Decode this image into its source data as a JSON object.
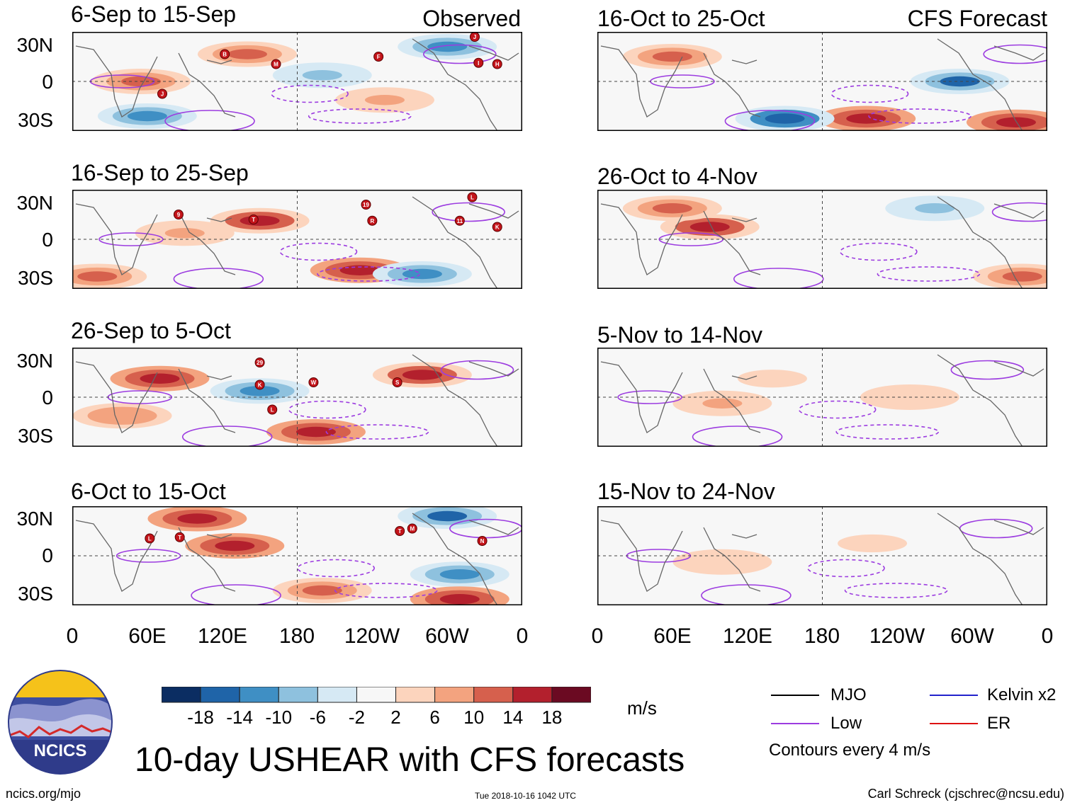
{
  "panels_left": [
    {
      "title": "6-Sep to 15-Sep",
      "corner": "Observed",
      "storms": [
        "B",
        "M",
        "F",
        "I",
        "H",
        "J",
        "J"
      ]
    },
    {
      "title": "16-Sep to 25-Sep",
      "corner": "",
      "storms": [
        "9",
        "T",
        "19",
        "R",
        "L",
        "11",
        "K"
      ]
    },
    {
      "title": "26-Sep to 5-Oct",
      "corner": "",
      "storms": [
        "29",
        "K",
        "W",
        "L",
        "S"
      ]
    },
    {
      "title": "6-Oct to 15-Oct",
      "corner": "",
      "storms": [
        "L",
        "T",
        "T",
        "M",
        "N"
      ]
    }
  ],
  "panels_right": [
    {
      "title": "16-Oct to 25-Oct",
      "corner": "CFS Forecast"
    },
    {
      "title": "26-Oct to 4-Nov",
      "corner": ""
    },
    {
      "title": "5-Nov to 14-Nov",
      "corner": ""
    },
    {
      "title": "15-Nov to 24-Nov",
      "corner": ""
    }
  ],
  "y_ticks": [
    "30N",
    "0",
    "30S"
  ],
  "x_ticks": [
    "0",
    "60E",
    "120E",
    "180",
    "120W",
    "60W",
    "0"
  ],
  "chart_data": {
    "type": "heatmap",
    "title": "10-day USHEAR with CFS forecasts",
    "variable": "USHEAR",
    "units": "m/s",
    "x_range_deg": [
      0,
      360
    ],
    "y_range_deg": [
      -40,
      40
    ],
    "colorbar_levels": [
      "-18",
      "-14",
      "-10",
      "-6",
      "-2",
      "2",
      "6",
      "10",
      "14",
      "18"
    ],
    "colorbar_colors": [
      "#0b2d62",
      "#1f64a8",
      "#3f8fc4",
      "#8ec1de",
      "#d6e9f4",
      "#f7f7f7",
      "#fcd4bd",
      "#f3a37f",
      "#d6604d",
      "#b3202d",
      "#6b0a22"
    ],
    "contour_interval": "Contours every 4 m/s",
    "legend": [
      {
        "label": "MJO",
        "color": "#000000"
      },
      {
        "label": "Kelvin x2",
        "color": "#2222cc"
      },
      {
        "label": "Low",
        "color": "#9c3ce0"
      },
      {
        "label": "ER",
        "color": "#dd1111"
      }
    ],
    "blobs": [
      {
        "panel": 0,
        "lon": 55,
        "lat": 0,
        "value": 14
      },
      {
        "panel": 0,
        "lon": 140,
        "lat": 22,
        "value": 14
      },
      {
        "panel": 0,
        "lon": 200,
        "lat": 5,
        "value": -8
      },
      {
        "panel": 0,
        "lon": 250,
        "lat": -15,
        "value": 8
      },
      {
        "panel": 0,
        "lon": 60,
        "lat": -28,
        "value": -12
      },
      {
        "panel": 0,
        "lon": 300,
        "lat": 28,
        "value": -10
      },
      {
        "panel": 1,
        "lon": 150,
        "lat": 15,
        "value": 16
      },
      {
        "panel": 1,
        "lon": 230,
        "lat": -25,
        "value": 18
      },
      {
        "panel": 1,
        "lon": 280,
        "lat": -28,
        "value": -12
      },
      {
        "panel": 1,
        "lon": 20,
        "lat": -30,
        "value": 14
      },
      {
        "panel": 1,
        "lon": 90,
        "lat": 5,
        "value": 8
      },
      {
        "panel": 2,
        "lon": 70,
        "lat": 15,
        "value": 18
      },
      {
        "panel": 2,
        "lon": 195,
        "lat": -28,
        "value": 18
      },
      {
        "panel": 2,
        "lon": 280,
        "lat": 18,
        "value": 16
      },
      {
        "panel": 2,
        "lon": 150,
        "lat": 5,
        "value": -12
      },
      {
        "panel": 2,
        "lon": 40,
        "lat": -15,
        "value": 10
      },
      {
        "panel": 3,
        "lon": 100,
        "lat": 30,
        "value": 18
      },
      {
        "panel": 3,
        "lon": 130,
        "lat": 8,
        "value": 18
      },
      {
        "panel": 3,
        "lon": 300,
        "lat": 32,
        "value": -14
      },
      {
        "panel": 3,
        "lon": 310,
        "lat": -15,
        "value": -12
      },
      {
        "panel": 3,
        "lon": 310,
        "lat": -35,
        "value": 18
      },
      {
        "panel": 3,
        "lon": 200,
        "lat": -28,
        "value": 14
      },
      {
        "panel": 4,
        "lon": 60,
        "lat": 20,
        "value": 14
      },
      {
        "panel": 4,
        "lon": 215,
        "lat": -30,
        "value": 18
      },
      {
        "panel": 4,
        "lon": 335,
        "lat": -33,
        "value": 18
      },
      {
        "panel": 4,
        "lon": 290,
        "lat": 0,
        "value": -14
      },
      {
        "panel": 4,
        "lon": 150,
        "lat": -30,
        "value": -16
      },
      {
        "panel": 5,
        "lon": 90,
        "lat": 10,
        "value": 16
      },
      {
        "panel": 5,
        "lon": 60,
        "lat": 25,
        "value": 12
      },
      {
        "panel": 5,
        "lon": 340,
        "lat": -30,
        "value": 12
      },
      {
        "panel": 5,
        "lon": 270,
        "lat": 25,
        "value": -8
      },
      {
        "panel": 6,
        "lon": 100,
        "lat": -5,
        "value": 8
      },
      {
        "panel": 6,
        "lon": 250,
        "lat": 0,
        "value": 6
      },
      {
        "panel": 6,
        "lon": 140,
        "lat": 15,
        "value": 4
      },
      {
        "panel": 7,
        "lon": 100,
        "lat": -5,
        "value": 6
      },
      {
        "panel": 7,
        "lon": 220,
        "lat": 10,
        "value": 4
      }
    ]
  },
  "footer": {
    "left": "ncics.org/mjo",
    "middle": "Tue 2018-10-16 1042 UTC",
    "right": "Carl Schreck (cjschrec@ncsu.edu)"
  },
  "logo_text": "NCICS"
}
